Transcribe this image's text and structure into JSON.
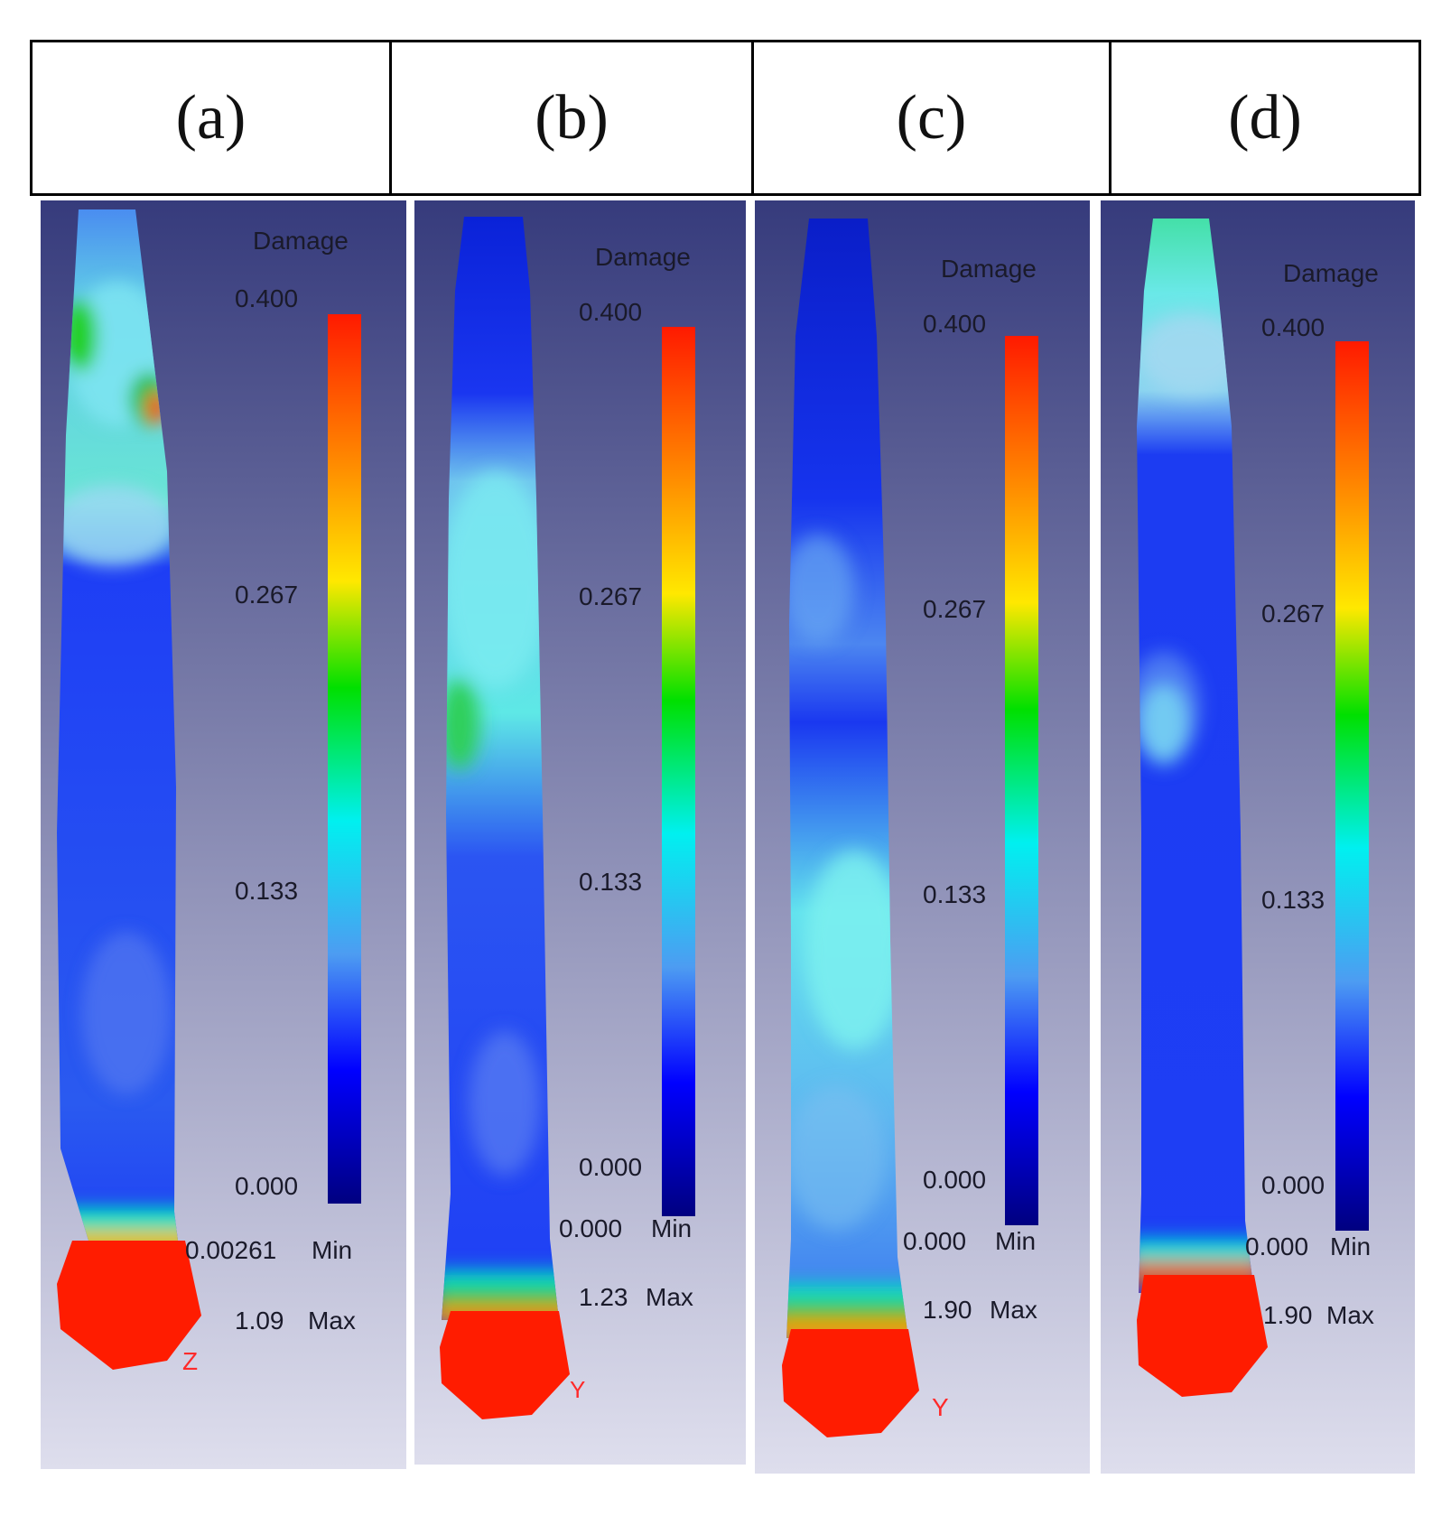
{
  "header": {
    "labels": [
      "(a)",
      "(b)",
      "(c)",
      "(d)"
    ]
  },
  "panels": [
    {
      "id": "a",
      "legend": {
        "title": "Damage",
        "ticks": [
          "0.400",
          "0.267",
          "0.133",
          "0.000"
        ],
        "min_value": "0.00261",
        "min_label": "Min",
        "max_value": "1.09",
        "max_label": "Max"
      },
      "axis_label": "Z"
    },
    {
      "id": "b",
      "legend": {
        "title": "Damage",
        "ticks": [
          "0.400",
          "0.267",
          "0.133",
          "0.000"
        ],
        "min_value": "0.000",
        "min_label": "Min",
        "max_value": "1.23",
        "max_label": "Max"
      },
      "axis_label": "Y"
    },
    {
      "id": "c",
      "legend": {
        "title": "Damage",
        "ticks": [
          "0.400",
          "0.267",
          "0.133",
          "0.000"
        ],
        "min_value": "0.000",
        "min_label": "Min",
        "max_value": "1.90",
        "max_label": "Max"
      },
      "axis_label": "Y"
    },
    {
      "id": "d",
      "legend": {
        "title": "Damage",
        "ticks": [
          "0.400",
          "0.267",
          "0.133",
          "0.000"
        ],
        "min_value": "0.000",
        "min_label": "Min",
        "max_value": "1.90",
        "max_label": "Max"
      },
      "axis_label": ""
    }
  ],
  "colors": {
    "bg_top": "#3a3f80",
    "bg_bottom": "#dcdcec",
    "scale": [
      "#ff1a00",
      "#ff8c00",
      "#ffe800",
      "#00e000",
      "#00f0f0",
      "#3a88f0",
      "#0000ff",
      "#000080"
    ],
    "specimen_blue": "#1e3ef5",
    "specimen_light": "#7fe6f2",
    "tip_red": "#ff1c00",
    "axis_label": "#ff2a2a",
    "legend_text": "#1a1a2a"
  }
}
